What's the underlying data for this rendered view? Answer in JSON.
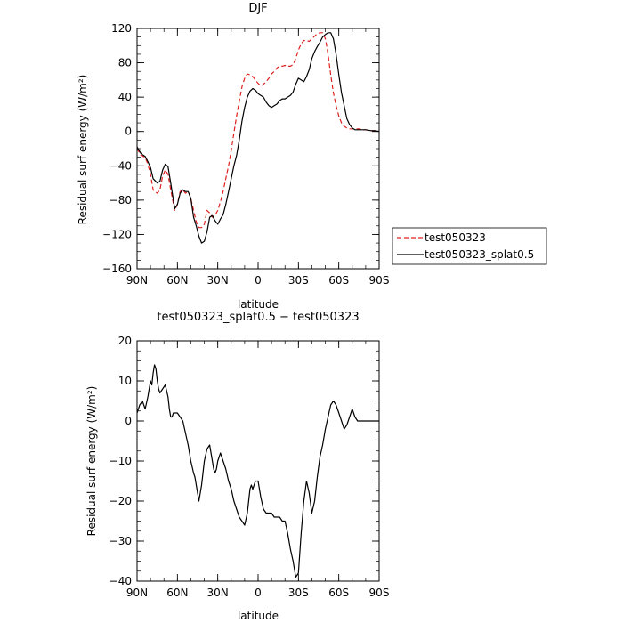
{
  "chart_data": [
    {
      "type": "line",
      "title": "DJF",
      "xlabel": "latitude",
      "ylabel": "Residual surf energy (W/m²)",
      "xlim": [
        90,
        -90
      ],
      "ylim": [
        -160,
        120
      ],
      "x_ticks": [
        90,
        60,
        30,
        0,
        -30,
        -60,
        -90
      ],
      "x_tick_labels": [
        "90N",
        "60N",
        "30N",
        "0",
        "30S",
        "60S",
        "90S"
      ],
      "y_ticks": [
        120,
        80,
        40,
        0,
        -40,
        -80,
        -120,
        -160
      ],
      "y_tick_labels": [
        "120",
        "80",
        "40",
        "0",
        "−40",
        "−80",
        "−120",
        "−160"
      ],
      "legend_position": "right",
      "series": [
        {
          "name": "test050323",
          "color": "#e02020",
          "dash": "dashed",
          "x": [
            90,
            87,
            84,
            82,
            80,
            78,
            75,
            73,
            71,
            69,
            67,
            65,
            62,
            60,
            58,
            56,
            54,
            52,
            50,
            48,
            46,
            44,
            42,
            40,
            38,
            36,
            34,
            32,
            30,
            28,
            26,
            24,
            22,
            20,
            18,
            16,
            14,
            12,
            10,
            8,
            6,
            4,
            2,
            0,
            -2,
            -4,
            -6,
            -8,
            -10,
            -12,
            -14,
            -16,
            -18,
            -20,
            -22,
            -24,
            -26,
            -28,
            -30,
            -32,
            -34,
            -36,
            -38,
            -40,
            -42,
            -44,
            -46,
            -48,
            -50,
            -52,
            -54,
            -56,
            -58,
            -60,
            -62,
            -64,
            -66,
            -68,
            -70,
            -72,
            -75,
            -78,
            -80,
            -84,
            -87,
            -90
          ],
          "y": [
            -20,
            -28,
            -30,
            -38,
            -50,
            -68,
            -72,
            -68,
            -52,
            -45,
            -50,
            -68,
            -92,
            -85,
            -70,
            -68,
            -72,
            -70,
            -78,
            -92,
            -105,
            -112,
            -112,
            -108,
            -92,
            -95,
            -100,
            -98,
            -92,
            -82,
            -70,
            -55,
            -40,
            -22,
            -2,
            18,
            35,
            52,
            62,
            67,
            66,
            64,
            60,
            56,
            53,
            55,
            58,
            62,
            67,
            70,
            74,
            76,
            76,
            77,
            76,
            76,
            78,
            85,
            95,
            102,
            106,
            106,
            105,
            108,
            111,
            114,
            115,
            115,
            108,
            90,
            66,
            45,
            30,
            18,
            10,
            6,
            4,
            3,
            3,
            3,
            3,
            2,
            2,
            1,
            1,
            0
          ]
        },
        {
          "name": "test050323_splat0.5",
          "color": "#000000",
          "dash": "solid",
          "x": [
            90,
            87,
            84,
            82,
            80,
            78,
            75,
            73,
            71,
            69,
            67,
            65,
            62,
            60,
            58,
            56,
            54,
            52,
            50,
            48,
            46,
            44,
            42,
            40,
            38,
            36,
            34,
            32,
            30,
            28,
            26,
            24,
            22,
            20,
            18,
            16,
            14,
            12,
            10,
            8,
            6,
            4,
            2,
            0,
            -2,
            -4,
            -6,
            -8,
            -10,
            -12,
            -14,
            -16,
            -18,
            -20,
            -22,
            -24,
            -26,
            -28,
            -30,
            -32,
            -34,
            -36,
            -38,
            -40,
            -42,
            -44,
            -46,
            -48,
            -50,
            -52,
            -54,
            -56,
            -58,
            -60,
            -62,
            -64,
            -66,
            -68,
            -70,
            -72,
            -75,
            -78,
            -80,
            -84,
            -87,
            -90
          ],
          "y": [
            -18,
            -26,
            -29,
            -35,
            -42,
            -55,
            -60,
            -58,
            -45,
            -38,
            -41,
            -60,
            -90,
            -85,
            -72,
            -68,
            -70,
            -70,
            -78,
            -100,
            -110,
            -122,
            -130,
            -128,
            -117,
            -100,
            -98,
            -104,
            -108,
            -102,
            -97,
            -85,
            -70,
            -55,
            -40,
            -28,
            -10,
            12,
            28,
            40,
            47,
            50,
            48,
            44,
            42,
            40,
            34,
            30,
            28,
            30,
            32,
            36,
            38,
            38,
            40,
            42,
            46,
            55,
            62,
            60,
            58,
            64,
            72,
            85,
            93,
            99,
            104,
            110,
            113,
            115,
            115,
            108,
            90,
            66,
            45,
            30,
            15,
            8,
            4,
            2,
            2,
            2,
            2,
            1,
            1,
            0
          ]
        }
      ]
    },
    {
      "type": "line",
      "title": "test050323_splat0.5 − test050323",
      "xlabel": "latitude",
      "ylabel": "Residual surf energy (W/m²)",
      "xlim": [
        90,
        -90
      ],
      "ylim": [
        -40,
        20
      ],
      "x_ticks": [
        90,
        60,
        30,
        0,
        -30,
        -60,
        -90
      ],
      "x_tick_labels": [
        "90N",
        "60N",
        "30N",
        "0",
        "30S",
        "60S",
        "90S"
      ],
      "y_ticks": [
        20,
        10,
        0,
        -10,
        -20,
        -30,
        -40
      ],
      "y_tick_labels": [
        "20",
        "10",
        "0",
        "−10",
        "−20",
        "−30",
        "−40"
      ],
      "series": [
        {
          "color": "#000000",
          "dash": "solid",
          "x": [
            90,
            88,
            86,
            84,
            82,
            80,
            79,
            78,
            77,
            76,
            75,
            74,
            73,
            71,
            69,
            67,
            66,
            65,
            64,
            63,
            62,
            61,
            60,
            58,
            56,
            54,
            52,
            50,
            48,
            47,
            46,
            44,
            42,
            40,
            38,
            36,
            35,
            34,
            33,
            32,
            31,
            30,
            29,
            28,
            27,
            26,
            25,
            24,
            22,
            20,
            18,
            16,
            14,
            12,
            10,
            8,
            6,
            5,
            4,
            2,
            0,
            -2,
            -4,
            -6,
            -8,
            -10,
            -12,
            -14,
            -16,
            -18,
            -20,
            -22,
            -24,
            -26,
            -28,
            -30,
            -32,
            -34,
            -36,
            -38,
            -40,
            -42,
            -44,
            -46,
            -48,
            -50,
            -52,
            -54,
            -56,
            -58,
            -60,
            -62,
            -64,
            -66,
            -68,
            -70,
            -72,
            -74,
            -76,
            -78,
            -80,
            -82,
            -84,
            -86,
            -88,
            -90
          ],
          "y": [
            2,
            4,
            5,
            3,
            6,
            10,
            9,
            12,
            14,
            13,
            10,
            8,
            7,
            8,
            9,
            6,
            3,
            1,
            1,
            2,
            2,
            2,
            2,
            1,
            0,
            -3,
            -6,
            -10,
            -13,
            -14,
            -16,
            -20,
            -16,
            -10,
            -7,
            -6,
            -8,
            -10,
            -12,
            -13,
            -12,
            -10,
            -9,
            -8,
            -9,
            -10,
            -11,
            -12,
            -15,
            -17,
            -20,
            -22,
            -24,
            -25,
            -26,
            -23,
            -17,
            -16,
            -17,
            -15,
            -15,
            -19,
            -22,
            -23,
            -23,
            -23,
            -24,
            -24,
            -24,
            -25,
            -25,
            -28,
            -32,
            -35,
            -39,
            -38,
            -28,
            -20,
            -15,
            -18,
            -23,
            -20,
            -14,
            -9,
            -6,
            -2,
            1,
            4,
            5,
            4,
            2,
            0,
            -2,
            -1,
            1,
            3,
            1,
            0,
            0,
            0,
            0,
            0,
            0,
            0,
            0,
            0
          ]
        }
      ]
    }
  ]
}
